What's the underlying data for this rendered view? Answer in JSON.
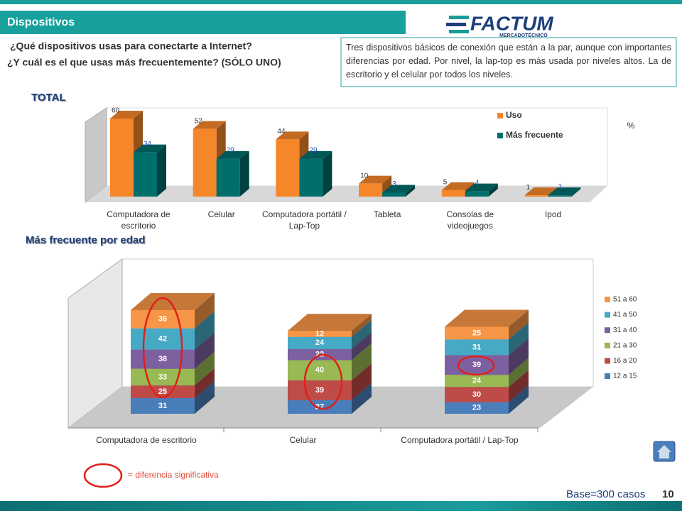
{
  "header": {
    "title": "Dispositivos",
    "question_1": "¿Qué dispositivos usas para conectarte a Internet?",
    "question_2": "¿Y cuál es el que usas más frecuentemente? (SÓLO UNO)",
    "note": "Tres dispositivos básicos de conexión que están a la par, aunque con importantes diferencias por edad. Por nivel, la lap-top es más usada por niveles altos. La de escritorio y el celular por todos los niveles.",
    "logo": "FACTUM",
    "logo_sub": "MERCADOTÉCNICO"
  },
  "chart_data": [
    {
      "type": "bar3d",
      "title": "TOTAL",
      "unit_label": "%",
      "categories": [
        "Computadora de escritorio",
        "Celular",
        "Computadora portátil / Lap-Top",
        "Tableta",
        "Consolas de videojuegos",
        "Ipod"
      ],
      "series": [
        {
          "name": "Uso",
          "color": "#f5862a",
          "values": [
            60,
            52,
            44,
            10,
            5,
            1
          ]
        },
        {
          "name": "Más frecuente",
          "color": "#006e6b",
          "values": [
            34,
            29,
            29,
            3,
            4,
            1
          ]
        }
      ]
    },
    {
      "type": "stacked3d",
      "title": "Más frecuente por edad",
      "categories": [
        "Computadora de escritorio",
        "Celular",
        "Computadora portátil / Lap-Top"
      ],
      "series": [
        {
          "name": "12 a 15",
          "color": "#4a7ebb",
          "values": [
            31,
            27,
            23
          ]
        },
        {
          "name": "16 a 20",
          "color": "#be4b48",
          "values": [
            25,
            39,
            30
          ]
        },
        {
          "name": "21 a 30",
          "color": "#98b954",
          "values": [
            33,
            40,
            24
          ]
        },
        {
          "name": "31 a 40",
          "color": "#7d60a0",
          "values": [
            38,
            22,
            39
          ]
        },
        {
          "name": "41 a 50",
          "color": "#46aac5",
          "values": [
            42,
            24,
            31
          ]
        },
        {
          "name": "51 a 60",
          "color": "#f79646",
          "values": [
            36,
            12,
            25
          ]
        }
      ]
    }
  ],
  "legend_note": "= diferencia significativa",
  "footer": {
    "base": "Base=300 casos",
    "page": "10"
  }
}
